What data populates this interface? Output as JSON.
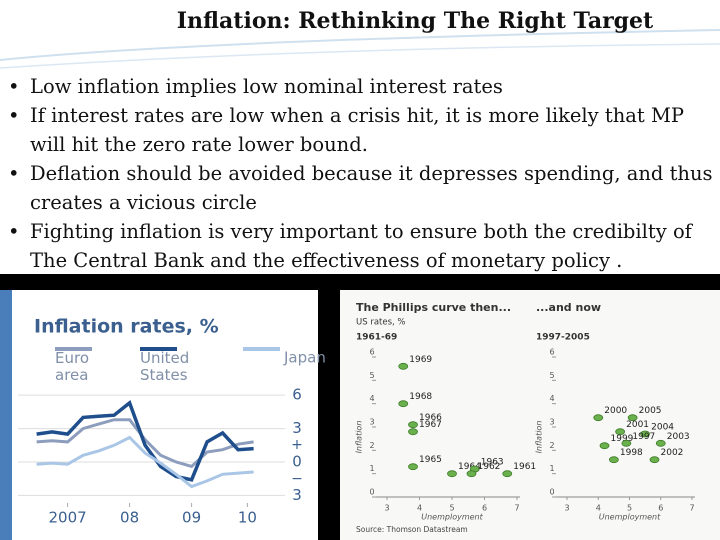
{
  "title": "Inflation: Rethinking The Right Target",
  "bullets": [
    "Low inflation implies low nominal interest rates",
    "If interest rates are low when a crisis hit, it is more likely that MP will hit the zero rate lower bound.",
    "Deflation should be avoided because it depresses spending, and thus creates a vicious circle",
    "Fighting inflation is very important to ensure both the credibilty of The Central Bank and the effectiveness of monetary policy ."
  ],
  "chart_data": [
    {
      "type": "line",
      "title": "Inflation rates, %",
      "x": [
        2007,
        2007.25,
        2007.5,
        2007.75,
        2008,
        2008.25,
        2008.5,
        2008.75,
        2009,
        2009.25,
        2009.5,
        2009.75,
        2010,
        2010.25,
        2010.5
      ],
      "xlim": [
        2006.7,
        2010.7
      ],
      "xticks": [
        {
          "value": 2007.5,
          "label": "2007"
        },
        {
          "value": 2008.5,
          "label": "08"
        },
        {
          "value": 2009.5,
          "label": "09"
        },
        {
          "value": 2010.4,
          "label": "10"
        }
      ],
      "ylim": [
        -3.5,
        7
      ],
      "yticks": [
        6,
        3,
        0,
        {
          "value": -3,
          "label": "3"
        }
      ],
      "sign_labels": [
        "+",
        "−"
      ],
      "grid": true,
      "series": [
        {
          "name": "Euro area",
          "color": "#8d9dbd",
          "values": [
            1.8,
            1.9,
            1.8,
            3.0,
            3.4,
            3.8,
            3.8,
            2.0,
            0.6,
            0.0,
            -0.4,
            0.9,
            1.1,
            1.6,
            1.8
          ]
        },
        {
          "name": "United States",
          "color": "#1f4e8c",
          "values": [
            2.5,
            2.7,
            2.5,
            4.0,
            4.1,
            4.2,
            5.3,
            1.5,
            -0.4,
            -1.3,
            -1.6,
            1.8,
            2.6,
            1.1,
            1.2
          ]
        },
        {
          "name": "Japan",
          "color": "#a9c6e6",
          "values": [
            -0.2,
            -0.1,
            -0.2,
            0.6,
            1.0,
            1.5,
            2.2,
            0.8,
            -0.1,
            -1.1,
            -2.2,
            -1.7,
            -1.1,
            -1.0,
            -0.9
          ]
        }
      ]
    },
    {
      "type": "scatter",
      "title": "The Phillips curve then...",
      "subtitle": "US rates, %",
      "period": "1961-69",
      "xlabel": "Unemployment",
      "ylabel": "Inflation",
      "xlim": [
        3,
        7
      ],
      "xticks": [
        3,
        4,
        5,
        6,
        7
      ],
      "ylim": [
        0,
        6
      ],
      "yticks": [
        0,
        1,
        2,
        3,
        4,
        5,
        6
      ],
      "color": "#6ab04c",
      "x": [
        3.5,
        3.5,
        3.8,
        3.8,
        3.8,
        5.0,
        5.7,
        5.6,
        6.7
      ],
      "values": [
        5.6,
        4.0,
        3.1,
        2.8,
        1.3,
        1.0,
        1.2,
        1.0,
        1.0
      ],
      "point_labels": [
        "1969",
        "1968",
        "1966",
        "1967",
        "1965",
        "1964",
        "1963",
        "1962",
        "1961"
      ]
    },
    {
      "type": "scatter",
      "title": "...and now",
      "period": "1997-2005",
      "xlabel": "Unemployment",
      "ylabel": "Inflation",
      "source": "Source: Thomson Datastream",
      "xlim": [
        3,
        7
      ],
      "xticks": [
        3,
        4,
        5,
        6,
        7
      ],
      "ylim": [
        0,
        6
      ],
      "yticks": [
        0,
        1,
        2,
        3,
        4,
        5,
        6
      ],
      "color": "#6ab04c",
      "x": [
        4.0,
        5.1,
        4.7,
        5.5,
        4.2,
        4.9,
        6.0,
        4.5,
        5.8
      ],
      "values": [
        3.4,
        3.4,
        2.8,
        2.7,
        2.2,
        2.3,
        2.3,
        1.6,
        1.6
      ],
      "point_labels": [
        "2000",
        "2005",
        "2001",
        "2004",
        "1999",
        "1997",
        "2003",
        "1998",
        "2002"
      ]
    }
  ]
}
